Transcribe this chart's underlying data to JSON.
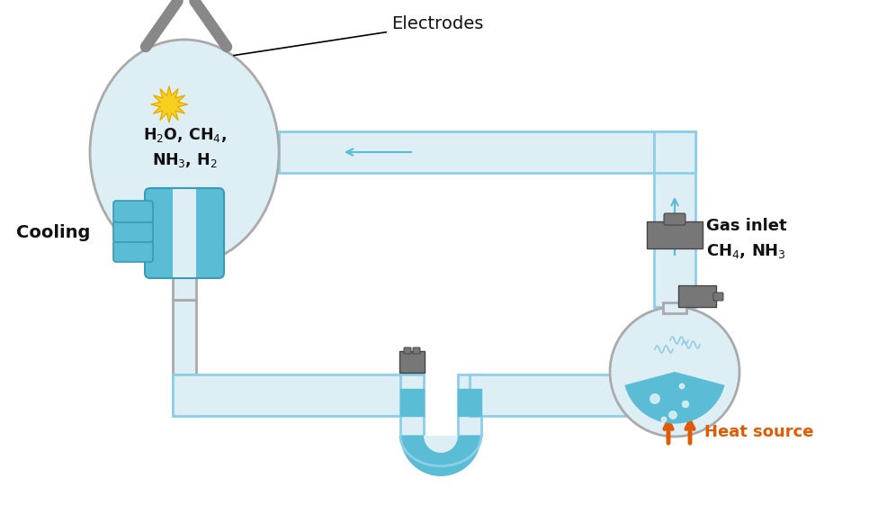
{
  "bg_color": "#ffffff",
  "tube_fill": "#ddeef5",
  "tube_stroke": "#8dcfe8",
  "cooling_blue": "#5bbcd6",
  "cooling_dark": "#3a9ab5",
  "water_blue": "#5bbcd6",
  "electrode_color": "#888888",
  "spark_yellow": "#f5d020",
  "spark_orange": "#e8a800",
  "valve_color": "#777777",
  "valve_dark": "#444444",
  "text_black": "#111111",
  "arrow_blue": "#5bbcd6",
  "heat_orange": "#e05a00",
  "flask_edge": "#aaaaaa",
  "tube_lw": 2.0,
  "tube_half": 0.23,
  "electrodes_label": "Electrodes",
  "cooling_label": "Cooling",
  "gas_inlet_1": "Gas inlet",
  "gas_inlet_2": "CH₄, NH₃",
  "heat_label": "Heat source",
  "flask_text_1": "H₂O, CH₄,",
  "flask_text_2": "NH₃, H₂"
}
